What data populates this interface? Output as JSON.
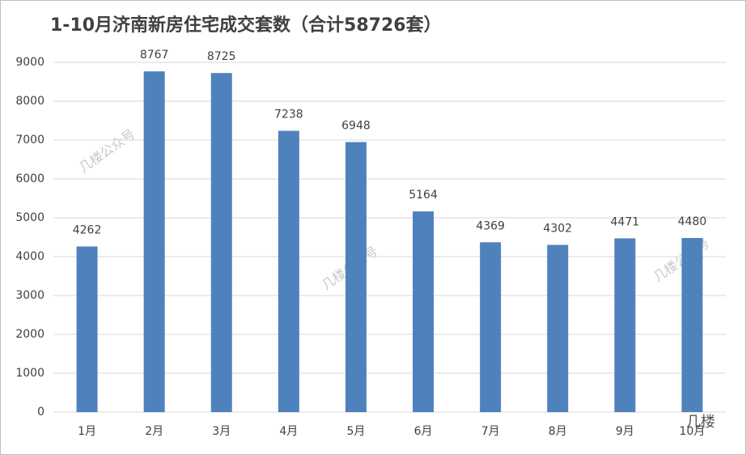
{
  "chart_data": {
    "type": "bar",
    "title": "1-10月济南新房住宅成交套数（合计58726套）",
    "categories": [
      "1月",
      "2月",
      "3月",
      "4月",
      "5月",
      "6月",
      "7月",
      "8月",
      "9月",
      "10月"
    ],
    "values": [
      4262,
      8767,
      8725,
      7238,
      6948,
      5164,
      4369,
      4302,
      4471,
      4480
    ],
    "color": "#4f81bd",
    "ylim": [
      0,
      9000
    ],
    "yticks": [
      0,
      1000,
      2000,
      3000,
      4000,
      5000,
      6000,
      7000,
      8000,
      9000
    ],
    "grid": true,
    "data_labels": true,
    "watermark": "几楼公众号",
    "brand": "几楼"
  }
}
